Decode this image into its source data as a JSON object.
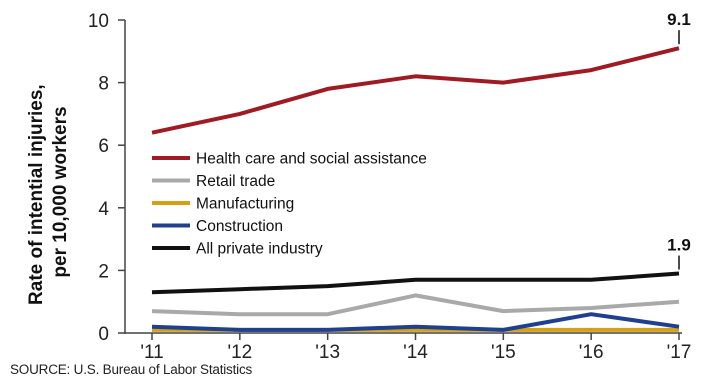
{
  "chart_data": {
    "type": "line",
    "ylabel_lines": [
      "Rate of intential injuries,",
      "per 10,000 workers"
    ],
    "categories": [
      "'11",
      "'12",
      "'13",
      "'14",
      "'15",
      "'16",
      "'17"
    ],
    "ylim": [
      0,
      10
    ],
    "yticks": [
      0,
      2,
      4,
      6,
      8,
      10
    ],
    "grid": false,
    "legend_position": "center-left",
    "series": [
      {
        "name": "Health care and social assistance",
        "color": "#9e1b24",
        "values": [
          6.4,
          7.0,
          7.8,
          8.2,
          8.0,
          8.4,
          9.1
        ]
      },
      {
        "name": "Retail trade",
        "color": "#a9a9a9",
        "values": [
          0.7,
          0.6,
          0.6,
          1.2,
          0.7,
          0.8,
          1.0
        ]
      },
      {
        "name": "Manufacturing",
        "color": "#d4a017",
        "values": [
          0.1,
          0.1,
          0.1,
          0.1,
          0.1,
          0.1,
          0.1
        ]
      },
      {
        "name": "Construction",
        "color": "#1f3f8f",
        "values": [
          0.2,
          0.1,
          0.1,
          0.2,
          0.1,
          0.6,
          0.2
        ]
      },
      {
        "name": "All private industry",
        "color": "#111111",
        "values": [
          1.3,
          1.4,
          1.5,
          1.7,
          1.7,
          1.7,
          1.9
        ]
      }
    ],
    "annotations": [
      {
        "series": "Health care and social assistance",
        "label": "9.1"
      },
      {
        "series": "All private industry",
        "label": "1.9"
      }
    ]
  },
  "source": "SOURCE: U.S. Bureau of Labor Statistics"
}
